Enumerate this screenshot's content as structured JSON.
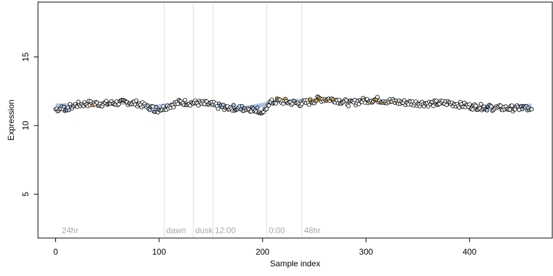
{
  "chart_data": {
    "type": "scatter",
    "title": "",
    "xlabel": "Sample index",
    "ylabel": "Expression",
    "xlim": [
      -17,
      480
    ],
    "ylim": [
      1.8,
      19.0
    ],
    "x_ticks": [
      0,
      100,
      200,
      300,
      400
    ],
    "y_ticks": [
      5,
      10,
      15
    ],
    "grid": false,
    "colors": {
      "point_stroke": "#000000",
      "fill_primary": "#ffffff",
      "fill_orange": "#f5a623",
      "fill_blue": "#a9c4e8",
      "fit_line": "#9fb8dc",
      "phase_line": "#dddddd",
      "phase_text": "#a8a8a8"
    },
    "phase_boundaries": [
      {
        "x": 4,
        "label": "24hr"
      },
      {
        "x": 105,
        "label": "dawn"
      },
      {
        "x": 133,
        "label": "dusk"
      },
      {
        "x": 152,
        "label": "12:00"
      },
      {
        "x": 204,
        "label": "0:00"
      },
      {
        "x": 238,
        "label": "48hr"
      }
    ],
    "fit_line": [
      [
        0,
        11.45
      ],
      [
        20,
        11.5
      ],
      [
        40,
        11.6
      ],
      [
        60,
        11.7
      ],
      [
        80,
        11.55
      ],
      [
        90,
        11.35
      ],
      [
        100,
        11.4
      ],
      [
        120,
        11.6
      ],
      [
        140,
        11.6
      ],
      [
        155,
        11.45
      ],
      [
        170,
        11.35
      ],
      [
        185,
        11.3
      ],
      [
        200,
        11.5
      ],
      [
        215,
        11.8
      ],
      [
        240,
        11.8
      ],
      [
        260,
        11.9
      ],
      [
        280,
        11.8
      ],
      [
        300,
        11.85
      ],
      [
        320,
        11.75
      ],
      [
        340,
        11.7
      ],
      [
        360,
        11.65
      ],
      [
        380,
        11.6
      ],
      [
        400,
        11.45
      ],
      [
        420,
        11.35
      ],
      [
        440,
        11.35
      ],
      [
        460,
        11.45
      ]
    ],
    "points": {
      "n": 461,
      "trend": [
        [
          0,
          11.2
        ],
        [
          10,
          11.25
        ],
        [
          20,
          11.5
        ],
        [
          30,
          11.6
        ],
        [
          50,
          11.6
        ],
        [
          70,
          11.7
        ],
        [
          80,
          11.6
        ],
        [
          90,
          11.3
        ],
        [
          100,
          11.15
        ],
        [
          110,
          11.45
        ],
        [
          120,
          11.7
        ],
        [
          135,
          11.65
        ],
        [
          150,
          11.55
        ],
        [
          160,
          11.35
        ],
        [
          180,
          11.25
        ],
        [
          195,
          11.2
        ],
        [
          201,
          10.8
        ],
        [
          205,
          11.6
        ],
        [
          215,
          11.8
        ],
        [
          235,
          11.6
        ],
        [
          245,
          11.7
        ],
        [
          255,
          11.95
        ],
        [
          270,
          11.9
        ],
        [
          285,
          11.6
        ],
        [
          295,
          11.8
        ],
        [
          310,
          11.9
        ],
        [
          330,
          11.7
        ],
        [
          360,
          11.6
        ],
        [
          380,
          11.65
        ],
        [
          400,
          11.4
        ],
        [
          420,
          11.3
        ],
        [
          440,
          11.25
        ],
        [
          460,
          11.3
        ]
      ],
      "noise": 0.22,
      "orange_indices": [
        36,
        52,
        62,
        68,
        214,
        222,
        246,
        252,
        256,
        262,
        268,
        300,
        306,
        310,
        318,
        330
      ],
      "blue_ranges": [
        [
          5,
          15
        ],
        [
          88,
          100
        ],
        [
          158,
          165
        ],
        [
          172,
          180
        ],
        [
          190,
          202
        ],
        [
          412,
          420
        ],
        [
          448,
          458
        ]
      ]
    },
    "annotations": [
      "24hr",
      "dawn",
      "dusk",
      "12:00",
      "0:00",
      "48hr"
    ]
  }
}
